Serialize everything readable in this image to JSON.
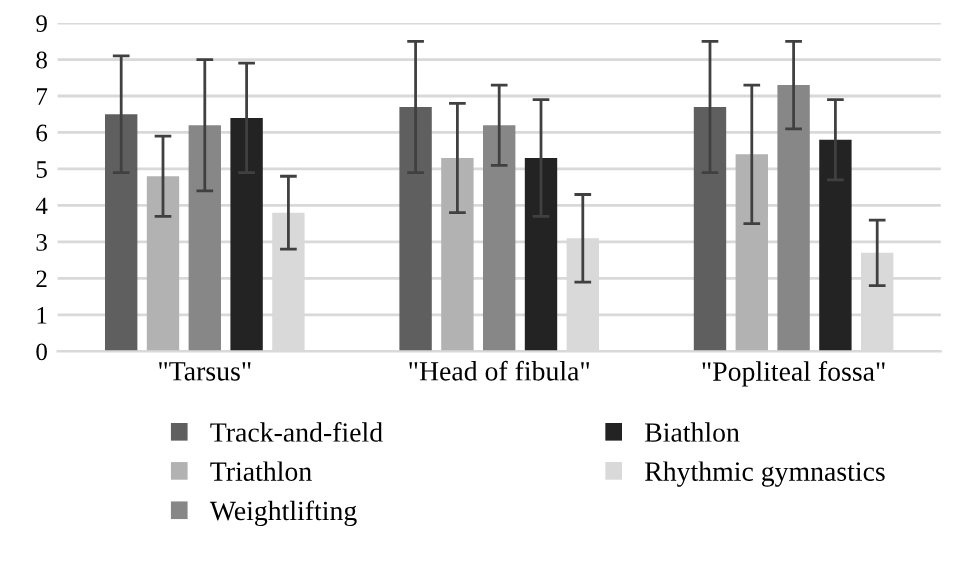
{
  "chart_data": {
    "type": "bar",
    "categories": [
      "\"Tarsus\"",
      "\"Head of fibula\"",
      "\"Popliteal fossa\""
    ],
    "series": [
      {
        "name": "Track-and-field",
        "color": "#5f5f5f",
        "values": [
          6.5,
          6.7,
          6.7
        ],
        "errors": [
          1.6,
          1.8,
          1.8
        ]
      },
      {
        "name": "Triathlon",
        "color": "#b2b2b2",
        "values": [
          4.8,
          5.3,
          5.4
        ],
        "errors": [
          1.1,
          1.5,
          1.9
        ]
      },
      {
        "name": "Weightlifting",
        "color": "#878787",
        "values": [
          6.2,
          6.2,
          7.3
        ],
        "errors": [
          1.8,
          1.1,
          1.2
        ]
      },
      {
        "name": "Biathlon",
        "color": "#232323",
        "values": [
          6.4,
          5.3,
          5.8
        ],
        "errors": [
          1.5,
          1.6,
          1.1
        ]
      },
      {
        "name": "Rhythmic gymnastics",
        "color": "#d9d9d9",
        "values": [
          3.8,
          3.1,
          2.7
        ],
        "errors": [
          1.0,
          1.2,
          0.9
        ]
      }
    ],
    "ylim": [
      0,
      9
    ],
    "yticks": [
      0,
      1,
      2,
      3,
      4,
      5,
      6,
      7,
      8,
      9
    ],
    "grid": "y",
    "legend": "bottom"
  }
}
